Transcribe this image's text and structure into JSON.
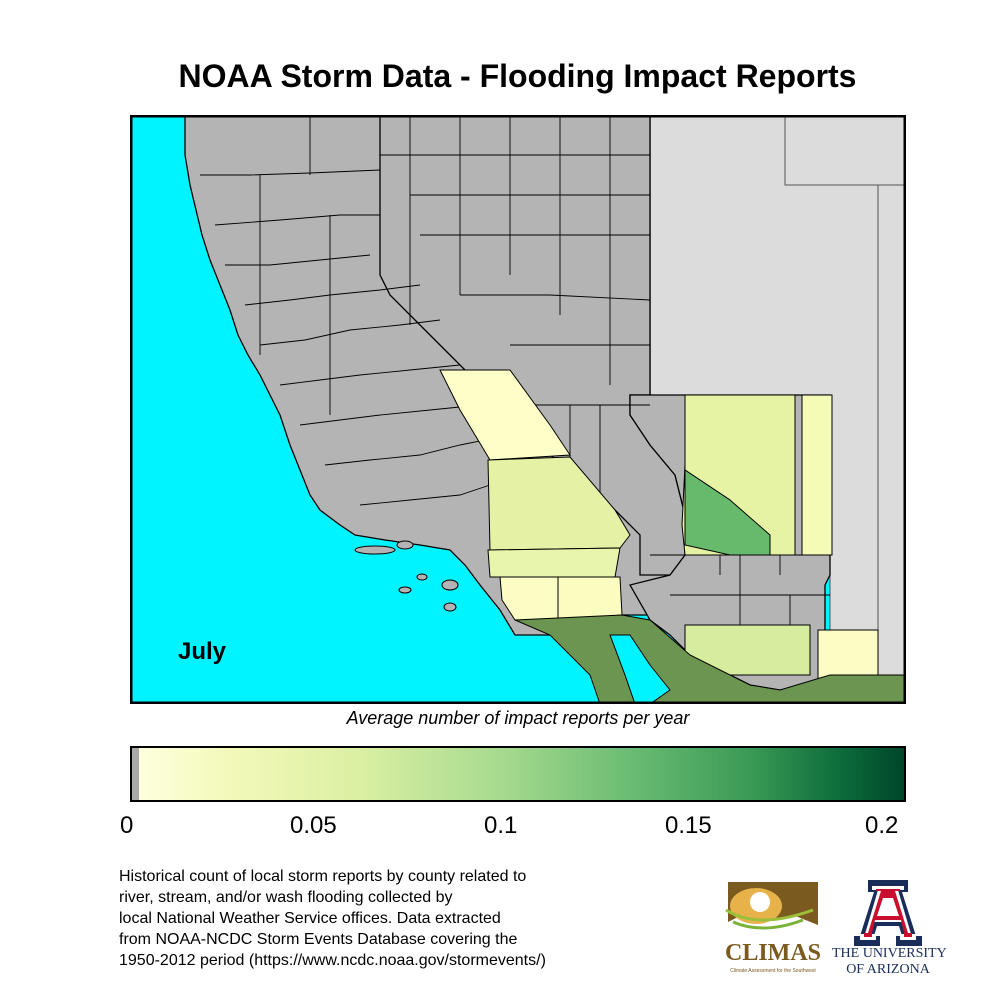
{
  "title": "NOAA Storm Data - Flooding Impact Reports",
  "month": "July",
  "colorbar": {
    "label": "Average number of impact reports per year",
    "ticks": [
      "0",
      "0.05",
      "0.1",
      "0.15",
      "0.2"
    ],
    "range": [
      0,
      0.2
    ]
  },
  "colors": {
    "ocean": "#00f4ff",
    "no_data_county": "#b4b4b4",
    "outside_domain": "#dcdcdc",
    "mexico": "#6b9550"
  },
  "footnote": [
    "Historical count of local storm reports by county related to",
    "river, stream, and/or wash flooding collected by",
    "local National Weather Service offices. Data extracted",
    "from NOAA-NCDC Storm Events Database covering the",
    "1950-2012 period (https://www.ncdc.noaa.gov/stormevents/)"
  ],
  "logos": {
    "climas": "CLIMAS",
    "climas_sub": "Climate Assessment for the Southwest",
    "ua_line1": "THE UNIVERSITY",
    "ua_line2": "OF ARIZONA"
  }
}
